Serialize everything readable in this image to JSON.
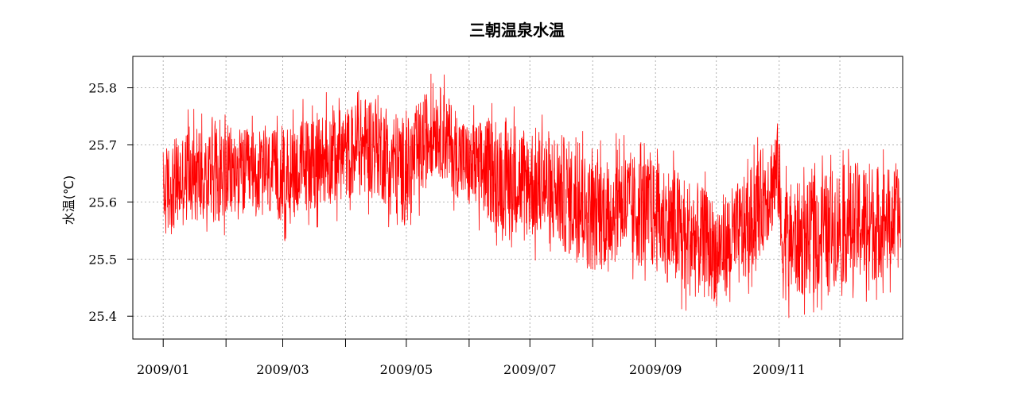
{
  "chart_data": {
    "type": "line",
    "title": "三朝温泉水温",
    "xlabel": "",
    "ylabel": "水温(℃)",
    "xlim": [
      "2008-12-17",
      "2010-01-01"
    ],
    "ylim": [
      25.36,
      25.855
    ],
    "grid": true,
    "y_ticks": [
      25.4,
      25.5,
      25.6,
      25.7,
      25.8
    ],
    "y_tick_labels": [
      "25.4",
      "25.5",
      "25.6",
      "25.7",
      "25.8"
    ],
    "x_ticks": [
      "2009-01-01",
      "2009-02-01",
      "2009-03-01",
      "2009-04-01",
      "2009-05-01",
      "2009-06-01",
      "2009-07-01",
      "2009-08-01",
      "2009-09-01",
      "2009-10-01",
      "2009-11-01",
      "2009-12-01"
    ],
    "x_tick_labels": [
      "2009/01",
      "",
      "2009/03",
      "",
      "2009/05",
      "",
      "2009/07",
      "",
      "2009/09",
      "",
      "2009/11",
      ""
    ],
    "series": [
      {
        "color": "#ff0000",
        "envelope": [
          {
            "x": "2009-01-01",
            "low": 25.53,
            "high": 25.7
          },
          {
            "x": "2009-01-15",
            "low": 25.56,
            "high": 25.74
          },
          {
            "x": "2009-02-01",
            "low": 25.56,
            "high": 25.74
          },
          {
            "x": "2009-02-15",
            "low": 25.57,
            "high": 25.73
          },
          {
            "x": "2009-03-01",
            "low": 25.56,
            "high": 25.73
          },
          {
            "x": "2009-03-15",
            "low": 25.58,
            "high": 25.76
          },
          {
            "x": "2009-04-01",
            "low": 25.6,
            "high": 25.77
          },
          {
            "x": "2009-04-15",
            "low": 25.61,
            "high": 25.8
          },
          {
            "x": "2009-05-01",
            "low": 25.55,
            "high": 25.75
          },
          {
            "x": "2009-05-15",
            "low": 25.65,
            "high": 25.82
          },
          {
            "x": "2009-06-01",
            "low": 25.58,
            "high": 25.74
          },
          {
            "x": "2009-06-15",
            "low": 25.55,
            "high": 25.76
          },
          {
            "x": "2009-07-01",
            "low": 25.53,
            "high": 25.74
          },
          {
            "x": "2009-07-15",
            "low": 25.51,
            "high": 25.73
          },
          {
            "x": "2009-08-01",
            "low": 25.47,
            "high": 25.68
          },
          {
            "x": "2009-08-15",
            "low": 25.49,
            "high": 25.7
          },
          {
            "x": "2009-09-01",
            "low": 25.47,
            "high": 25.68
          },
          {
            "x": "2009-09-15",
            "low": 25.43,
            "high": 25.66
          },
          {
            "x": "2009-10-01",
            "low": 25.42,
            "high": 25.61
          },
          {
            "x": "2009-10-15",
            "low": 25.45,
            "high": 25.65
          },
          {
            "x": "2009-11-01",
            "low": 25.56,
            "high": 25.75
          },
          {
            "x": "2009-11-02",
            "low": 25.42,
            "high": 25.64
          },
          {
            "x": "2009-11-15",
            "low": 25.43,
            "high": 25.64
          },
          {
            "x": "2009-12-01",
            "low": 25.45,
            "high": 25.67
          },
          {
            "x": "2009-12-15",
            "low": 25.45,
            "high": 25.68
          },
          {
            "x": "2009-12-31",
            "low": 25.48,
            "high": 25.66
          }
        ]
      }
    ]
  }
}
